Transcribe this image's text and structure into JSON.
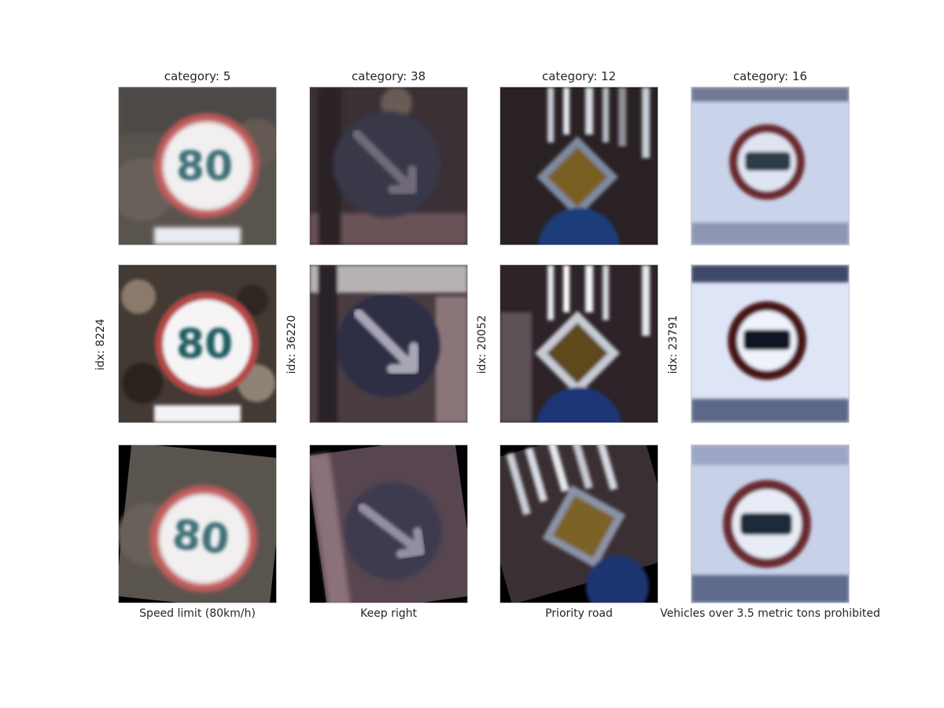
{
  "columns": [
    {
      "title": "category: 5",
      "idx": "idx: 8224",
      "caption": "Speed limit (80km/h)",
      "sign_text": "80",
      "sign_type": "speed-limit-sign"
    },
    {
      "title": "category: 38",
      "idx": "idx: 36220",
      "caption": "Keep right",
      "sign_type": "keep-right-sign"
    },
    {
      "title": "category: 12",
      "idx": "idx: 20052",
      "caption": "Priority road",
      "sign_type": "priority-road-sign"
    },
    {
      "title": "category: 16",
      "idx": "idx: 23791",
      "caption": "Vehicles over 3.5 metric tons prohibited",
      "sign_type": "no-trucks-sign"
    }
  ]
}
